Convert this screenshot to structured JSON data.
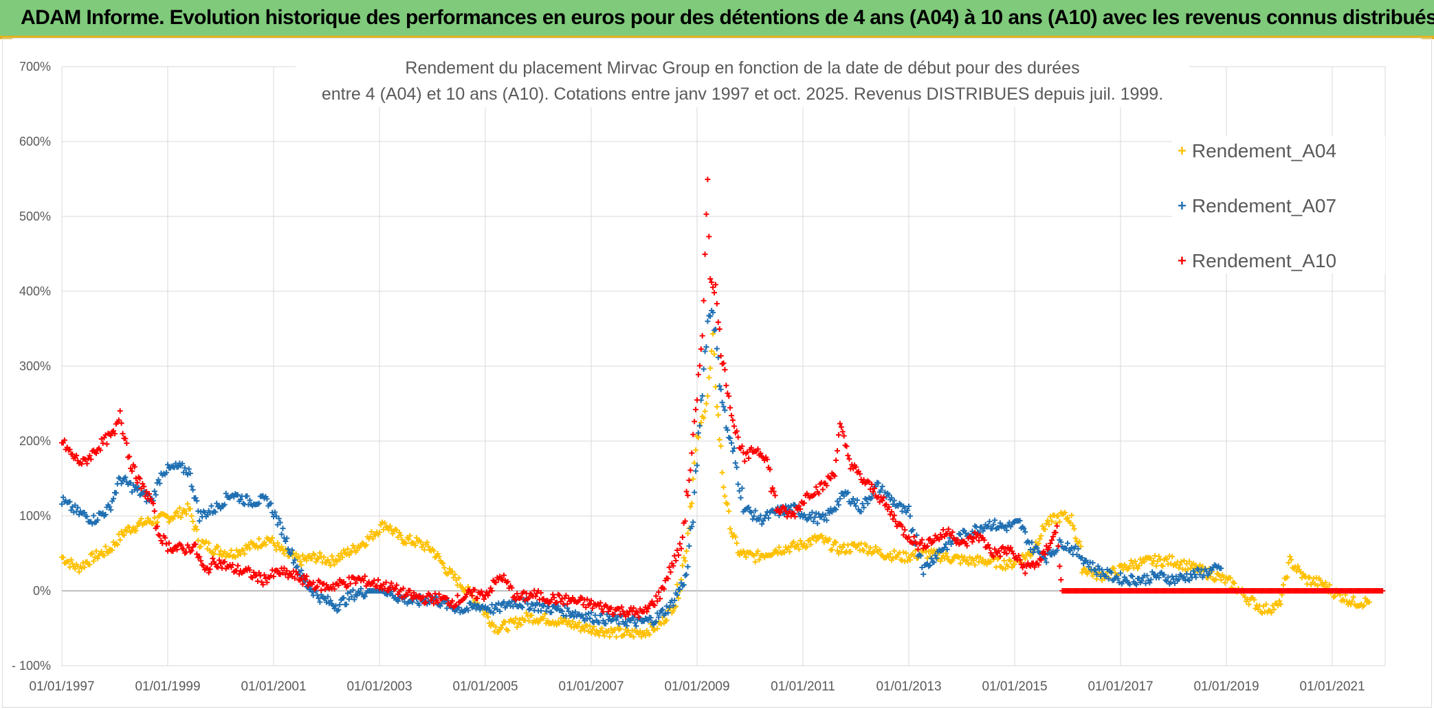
{
  "header": {
    "title": "ADAM Informe. Evolution historique des performances en euros pour des détentions de 4 ans (A04) à 10 ans (A10) avec les revenus connus distribués"
  },
  "colors": {
    "banner": "#7fca7b",
    "accent": "#e3b21a",
    "A04": "#ffc000",
    "A07": "#1f6fb2",
    "A10": "#ff0000"
  },
  "chart_data": {
    "type": "scatter",
    "title_line1": "Rendement du placement Mirvac Group  en fonction de la date de début pour des durées",
    "title_line2": "entre 4 (A04) et 10 ans (A10). Cotations entre janv 1997 et oct. 2025. Revenus DISTRIBUES depuis juil. 1999.",
    "xlabel": "",
    "ylabel": "",
    "ylim": [
      -100,
      700
    ],
    "xlim": [
      1997.0,
      2022.0
    ],
    "y_ticks": [
      "- 100%",
      "0%",
      "100%",
      "200%",
      "300%",
      "400%",
      "500%",
      "600%",
      "700%"
    ],
    "x_ticks": [
      "01/01/1997",
      "01/01/1999",
      "01/01/2001",
      "01/01/2003",
      "01/01/2005",
      "01/01/2007",
      "01/01/2009",
      "01/01/2011",
      "01/01/2013",
      "01/01/2015",
      "01/01/2017",
      "01/01/2019",
      "01/01/2021"
    ],
    "legend": [
      "Rendement_A04",
      "Rendement_A07",
      "Rendement_A10"
    ],
    "series": [
      {
        "name": "Rendement_A04",
        "color": "#ffc000",
        "points": [
          [
            1997.0,
            45
          ],
          [
            1997.3,
            30
          ],
          [
            1997.6,
            45
          ],
          [
            1997.9,
            55
          ],
          [
            1998.2,
            80
          ],
          [
            1998.5,
            90
          ],
          [
            1998.8,
            95
          ],
          [
            1999.1,
            100
          ],
          [
            1999.4,
            110
          ],
          [
            1999.6,
            65
          ],
          [
            1999.9,
            55
          ],
          [
            2000.2,
            50
          ],
          [
            2000.6,
            60
          ],
          [
            2000.9,
            70
          ],
          [
            2001.2,
            50
          ],
          [
            2001.5,
            40
          ],
          [
            2001.8,
            45
          ],
          [
            2002.1,
            40
          ],
          [
            2002.5,
            55
          ],
          [
            2002.8,
            70
          ],
          [
            2003.1,
            90
          ],
          [
            2003.4,
            70
          ],
          [
            2003.7,
            65
          ],
          [
            2004.0,
            55
          ],
          [
            2004.3,
            25
          ],
          [
            2004.6,
            5
          ],
          [
            2004.9,
            -20
          ],
          [
            2005.2,
            -50
          ],
          [
            2005.5,
            -45
          ],
          [
            2005.8,
            -35
          ],
          [
            2006.2,
            -38
          ],
          [
            2006.5,
            -42
          ],
          [
            2006.8,
            -48
          ],
          [
            2007.1,
            -52
          ],
          [
            2007.4,
            -55
          ],
          [
            2007.7,
            -58
          ],
          [
            2008.0,
            -55
          ],
          [
            2008.3,
            -45
          ],
          [
            2008.6,
            -15
          ],
          [
            2008.8,
            60
          ],
          [
            2009.0,
            200
          ],
          [
            2009.2,
            260
          ],
          [
            2009.3,
            330
          ],
          [
            2009.4,
            230
          ],
          [
            2009.5,
            140
          ],
          [
            2009.65,
            80
          ],
          [
            2009.8,
            50
          ],
          [
            2010.1,
            45
          ],
          [
            2010.5,
            55
          ],
          [
            2010.9,
            60
          ],
          [
            2011.3,
            70
          ],
          [
            2011.7,
            55
          ],
          [
            2012.1,
            60
          ],
          [
            2012.5,
            50
          ],
          [
            2012.9,
            45
          ],
          [
            2013.3,
            50
          ],
          [
            2013.7,
            45
          ],
          [
            2014.1,
            40
          ],
          [
            2014.5,
            40
          ],
          [
            2014.9,
            35
          ],
          [
            2015.3,
            50
          ],
          [
            2015.6,
            90
          ],
          [
            2015.9,
            100
          ],
          [
            2016.1,
            95
          ],
          [
            2016.3,
            30
          ],
          [
            2016.6,
            20
          ],
          [
            2016.9,
            25
          ],
          [
            2017.2,
            35
          ],
          [
            2017.6,
            40
          ],
          [
            2018.0,
            40
          ],
          [
            2018.4,
            30
          ],
          [
            2018.8,
            20
          ],
          [
            2019.1,
            10
          ],
          [
            2019.4,
            -10
          ],
          [
            2019.7,
            -25
          ],
          [
            2020.0,
            -20
          ],
          [
            2020.2,
            40
          ],
          [
            2020.5,
            15
          ],
          [
            2020.8,
            10
          ],
          [
            2021.1,
            -5
          ],
          [
            2021.4,
            -15
          ],
          [
            2021.7,
            -15
          ]
        ]
      },
      {
        "name": "Rendement_A07",
        "color": "#1f6fb2",
        "points": [
          [
            1997.0,
            120
          ],
          [
            1997.3,
            105
          ],
          [
            1997.6,
            95
          ],
          [
            1997.9,
            110
          ],
          [
            1998.1,
            150
          ],
          [
            1998.4,
            135
          ],
          [
            1998.7,
            120
          ],
          [
            1998.9,
            160
          ],
          [
            1999.2,
            165
          ],
          [
            1999.4,
            160
          ],
          [
            1999.6,
            100
          ],
          [
            1999.9,
            110
          ],
          [
            2000.2,
            130
          ],
          [
            2000.5,
            120
          ],
          [
            2000.9,
            120
          ],
          [
            2001.2,
            75
          ],
          [
            2001.4,
            40
          ],
          [
            2001.6,
            10
          ],
          [
            2001.9,
            -10
          ],
          [
            2002.2,
            -20
          ],
          [
            2002.5,
            -5
          ],
          [
            2002.8,
            0
          ],
          [
            2003.1,
            0
          ],
          [
            2003.4,
            -10
          ],
          [
            2003.7,
            -15
          ],
          [
            2004.0,
            -10
          ],
          [
            2004.3,
            -20
          ],
          [
            2004.6,
            -25
          ],
          [
            2004.9,
            -20
          ],
          [
            2005.2,
            -25
          ],
          [
            2005.5,
            -15
          ],
          [
            2005.8,
            -18
          ],
          [
            2006.1,
            -22
          ],
          [
            2006.4,
            -25
          ],
          [
            2006.7,
            -30
          ],
          [
            2007.0,
            -35
          ],
          [
            2007.3,
            -38
          ],
          [
            2007.6,
            -40
          ],
          [
            2007.9,
            -42
          ],
          [
            2008.2,
            -38
          ],
          [
            2008.5,
            -20
          ],
          [
            2008.8,
            20
          ],
          [
            2008.95,
            120
          ],
          [
            2009.05,
            230
          ],
          [
            2009.2,
            360
          ],
          [
            2009.3,
            380
          ],
          [
            2009.4,
            300
          ],
          [
            2009.55,
            220
          ],
          [
            2009.7,
            180
          ],
          [
            2009.9,
            110
          ],
          [
            2010.2,
            95
          ],
          [
            2010.5,
            105
          ],
          [
            2010.8,
            110
          ],
          [
            2011.1,
            100
          ],
          [
            2011.4,
            95
          ],
          [
            2011.8,
            130
          ],
          [
            2012.1,
            110
          ],
          [
            2012.4,
            140
          ],
          [
            2012.7,
            120
          ],
          [
            2013.0,
            100
          ],
          [
            2013.3,
            30
          ],
          [
            2013.6,
            55
          ],
          [
            2013.9,
            70
          ],
          [
            2014.2,
            80
          ],
          [
            2014.5,
            90
          ],
          [
            2014.8,
            85
          ],
          [
            2015.1,
            90
          ],
          [
            2015.3,
            60
          ],
          [
            2015.6,
            45
          ],
          [
            2015.9,
            65
          ],
          [
            2016.2,
            50
          ],
          [
            2016.5,
            30
          ],
          [
            2016.8,
            20
          ],
          [
            2017.1,
            15
          ],
          [
            2017.4,
            15
          ],
          [
            2017.7,
            20
          ],
          [
            2018.0,
            15
          ],
          [
            2018.3,
            20
          ],
          [
            2018.6,
            25
          ],
          [
            2018.9,
            30
          ]
        ]
      },
      {
        "name": "Rendement_A10",
        "color": "#ff0000",
        "points": [
          [
            1997.0,
            200
          ],
          [
            1997.2,
            180
          ],
          [
            1997.4,
            170
          ],
          [
            1997.6,
            185
          ],
          [
            1997.8,
            200
          ],
          [
            1998.0,
            210
          ],
          [
            1998.1,
            240
          ],
          [
            1998.3,
            170
          ],
          [
            1998.5,
            140
          ],
          [
            1998.7,
            120
          ],
          [
            1998.8,
            80
          ],
          [
            1999.0,
            60
          ],
          [
            1999.3,
            55
          ],
          [
            1999.5,
            60
          ],
          [
            1999.7,
            25
          ],
          [
            1999.9,
            40
          ],
          [
            2000.2,
            30
          ],
          [
            2000.5,
            25
          ],
          [
            2000.8,
            15
          ],
          [
            2001.1,
            25
          ],
          [
            2001.4,
            20
          ],
          [
            2001.7,
            10
          ],
          [
            2002.0,
            5
          ],
          [
            2002.3,
            10
          ],
          [
            2002.6,
            15
          ],
          [
            2002.9,
            10
          ],
          [
            2003.2,
            5
          ],
          [
            2003.5,
            -5
          ],
          [
            2003.8,
            -10
          ],
          [
            2004.1,
            -10
          ],
          [
            2004.4,
            -15
          ],
          [
            2004.7,
            -5
          ],
          [
            2005.0,
            -5
          ],
          [
            2005.3,
            20
          ],
          [
            2005.6,
            -10
          ],
          [
            2005.9,
            -5
          ],
          [
            2006.2,
            -10
          ],
          [
            2006.5,
            -12
          ],
          [
            2006.8,
            -15
          ],
          [
            2007.1,
            -20
          ],
          [
            2007.4,
            -25
          ],
          [
            2007.7,
            -28
          ],
          [
            2008.0,
            -30
          ],
          [
            2008.3,
            -5
          ],
          [
            2008.5,
            30
          ],
          [
            2008.7,
            60
          ],
          [
            2008.85,
            150
          ],
          [
            2009.0,
            250
          ],
          [
            2009.1,
            350
          ],
          [
            2009.15,
            450
          ],
          [
            2009.2,
            540
          ],
          [
            2009.25,
            420
          ],
          [
            2009.35,
            400
          ],
          [
            2009.45,
            320
          ],
          [
            2009.55,
            280
          ],
          [
            2009.7,
            220
          ],
          [
            2009.9,
            175
          ],
          [
            2010.1,
            190
          ],
          [
            2010.3,
            180
          ],
          [
            2010.5,
            110
          ],
          [
            2010.8,
            100
          ],
          [
            2011.1,
            130
          ],
          [
            2011.4,
            140
          ],
          [
            2011.6,
            160
          ],
          [
            2011.7,
            220
          ],
          [
            2011.9,
            170
          ],
          [
            2012.1,
            150
          ],
          [
            2012.4,
            130
          ],
          [
            2012.7,
            100
          ],
          [
            2012.9,
            80
          ],
          [
            2013.2,
            60
          ],
          [
            2013.5,
            70
          ],
          [
            2013.8,
            80
          ],
          [
            2014.0,
            60
          ],
          [
            2014.3,
            75
          ],
          [
            2014.6,
            50
          ],
          [
            2014.9,
            55
          ],
          [
            2015.2,
            30
          ],
          [
            2015.5,
            40
          ],
          [
            2015.7,
            70
          ],
          [
            2015.8,
            80
          ],
          [
            2015.9,
            0
          ],
          [
            2016.5,
            0
          ],
          [
            2017.0,
            0
          ],
          [
            2017.5,
            0
          ],
          [
            2018.0,
            0
          ],
          [
            2018.5,
            0
          ],
          [
            2019.0,
            0
          ],
          [
            2019.5,
            0
          ],
          [
            2020.0,
            0
          ],
          [
            2020.5,
            0
          ],
          [
            2021.0,
            0
          ],
          [
            2021.5,
            0
          ],
          [
            2021.95,
            0
          ]
        ]
      }
    ]
  }
}
